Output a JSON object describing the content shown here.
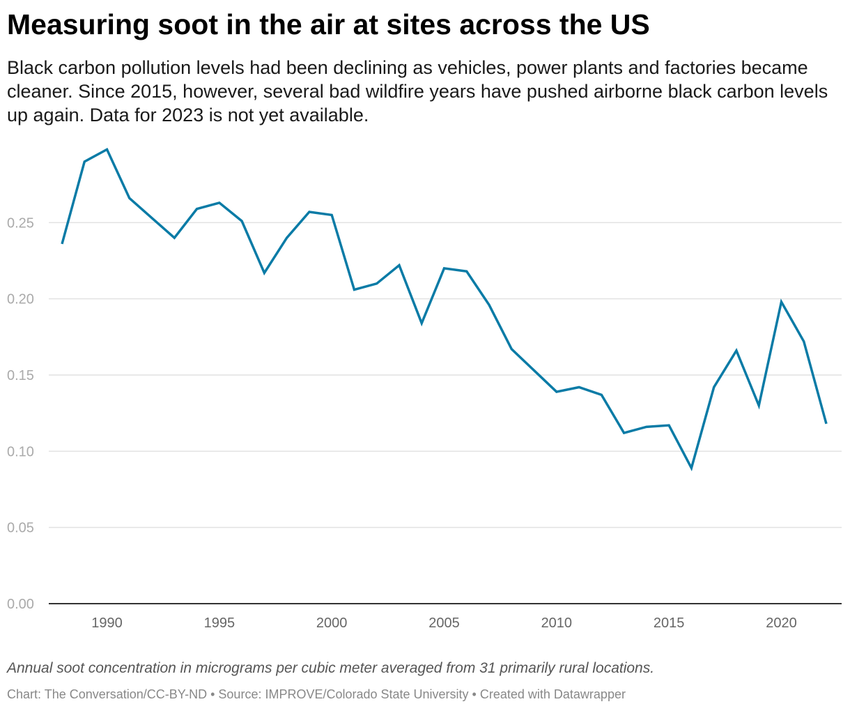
{
  "header": {
    "title": "Measuring soot in the air at sites across the US",
    "subtitle": "Black carbon pollution levels had been declining as vehicles, power plants and factories became cleaner. Since 2015, however, several bad wildfire years have pushed airborne black carbon levels up again. Data for 2023 is not yet available."
  },
  "footer": {
    "notes": "Annual soot concentration in micrograms per cubic meter averaged from 31 primarily rural locations.",
    "credit": "Chart: The Conversation/CC-BY-ND • Source: IMPROVE/Colorado State University • Created with Datawrapper"
  },
  "colors": {
    "line": "#0a7ba6",
    "grid": "#e2e2e2",
    "baseline": "#333333",
    "y_tick_text": "#aaaaaa",
    "x_tick_text": "#666666"
  },
  "chart_data": {
    "type": "line",
    "title": "Measuring soot in the air at sites across the US",
    "xlabel": "",
    "ylabel": "",
    "x": [
      1988,
      1989,
      1990,
      1991,
      1992,
      1993,
      1994,
      1995,
      1996,
      1997,
      1998,
      1999,
      2000,
      2001,
      2002,
      2003,
      2004,
      2005,
      2006,
      2007,
      2008,
      2009,
      2010,
      2011,
      2012,
      2013,
      2014,
      2015,
      2016,
      2017,
      2018,
      2019,
      2020,
      2021,
      2022
    ],
    "series": [
      {
        "values": [
          0.236,
          0.29,
          0.298,
          0.266,
          0.253,
          0.24,
          0.259,
          0.263,
          0.251,
          0.217,
          0.24,
          0.257,
          0.255,
          0.206,
          0.21,
          0.222,
          0.184,
          0.22,
          0.218,
          0.196,
          0.167,
          0.153,
          0.139,
          0.142,
          0.137,
          0.112,
          0.116,
          0.117,
          0.089,
          0.142,
          0.166,
          0.13,
          0.198,
          0.172,
          0.118
        ]
      }
    ],
    "xlim": [
      1988,
      2022
    ],
    "ylim": [
      0,
      0.3
    ],
    "x_ticks": [
      1990,
      1995,
      2000,
      2005,
      2010,
      2015,
      2020
    ],
    "x_tick_labels": [
      "1990",
      "1995",
      "2000",
      "2005",
      "2010",
      "2015",
      "2020"
    ],
    "y_ticks": [
      0,
      0.05,
      0.1,
      0.15,
      0.2,
      0.25
    ],
    "y_tick_labels": [
      "0.00",
      "0.05",
      "0.10",
      "0.15",
      "0.20",
      "0.25"
    ],
    "grid": true,
    "legend": false
  }
}
